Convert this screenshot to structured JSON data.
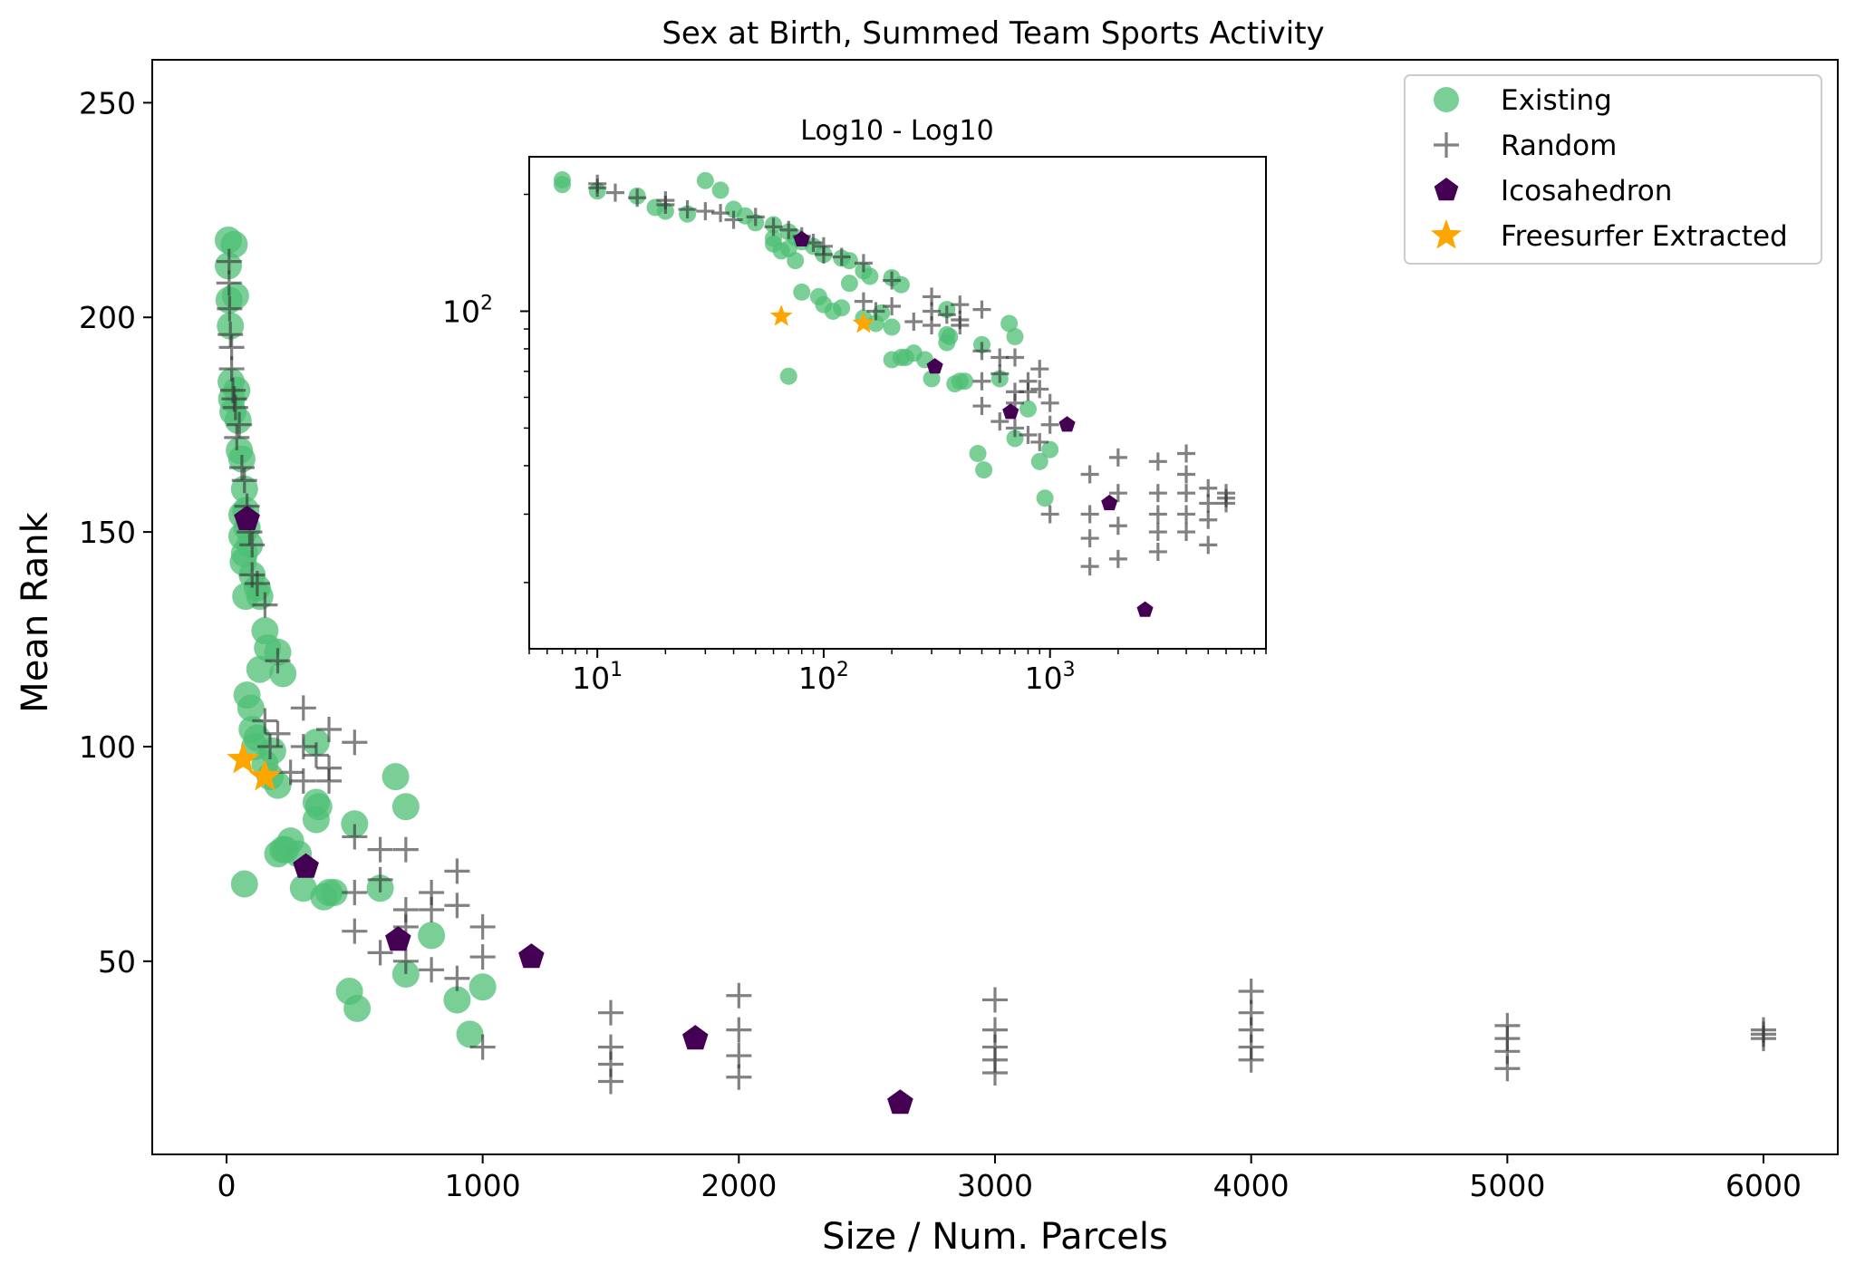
{
  "chart_data": [
    {
      "type": "scatter",
      "title": "Sex at Birth, Summed Team Sports Activity",
      "xlabel": "Size / Num. Parcels",
      "ylabel": "Mean Rank",
      "xlim": [
        -290,
        6290
      ],
      "ylim": [
        5,
        260
      ],
      "xticks": [
        0,
        1000,
        2000,
        3000,
        4000,
        5000,
        6000
      ],
      "xtick_labels": [
        "0",
        "1000",
        "2000",
        "3000",
        "4000",
        "5000",
        "6000"
      ],
      "yticks": [
        50,
        100,
        150,
        200,
        250
      ],
      "ytick_labels": [
        "50",
        "100",
        "150",
        "200",
        "250"
      ],
      "grid": false,
      "legend": {
        "position": "top-right",
        "entries": [
          {
            "label": "Existing",
            "marker": "circle",
            "color": "#4dbf74"
          },
          {
            "label": "Random",
            "marker": "plus",
            "color": "#333333"
          },
          {
            "label": "Icosahedron",
            "marker": "pentagon",
            "color": "#440154"
          },
          {
            "label": "Freesurfer Extracted",
            "marker": "star",
            "color": "#ffa500"
          }
        ]
      },
      "series": [
        {
          "name": "Existing",
          "color": "#4dbf74",
          "marker": "circle",
          "points": [
            [
              7,
              218
            ],
            [
              7,
              212
            ],
            [
              10,
              204
            ],
            [
              15,
              198
            ],
            [
              18,
              185
            ],
            [
              20,
              181
            ],
            [
              25,
              178
            ],
            [
              30,
              217
            ],
            [
              35,
              205
            ],
            [
              40,
              183
            ],
            [
              45,
              176
            ],
            [
              50,
              169
            ],
            [
              60,
              167
            ],
            [
              70,
              160
            ],
            [
              75,
              155
            ],
            [
              80,
              151
            ],
            [
              90,
              147
            ],
            [
              100,
              140
            ],
            [
              120,
              137
            ],
            [
              130,
              135
            ],
            [
              150,
              127
            ],
            [
              160,
              123
            ],
            [
              200,
              122
            ],
            [
              220,
              117
            ],
            [
              60,
              154
            ],
            [
              60,
              149
            ],
            [
              65,
              143
            ],
            [
              70,
              145
            ],
            [
              75,
              135
            ],
            [
              80,
              112
            ],
            [
              95,
              109
            ],
            [
              100,
              104
            ],
            [
              110,
              100
            ],
            [
              120,
              102
            ],
            [
              130,
              118
            ],
            [
              150,
              96
            ],
            [
              170,
              93
            ],
            [
              180,
              99
            ],
            [
              200,
              91
            ],
            [
              200,
              75
            ],
            [
              220,
              76
            ],
            [
              230,
              76
            ],
            [
              250,
              78
            ],
            [
              280,
              75
            ],
            [
              300,
              67
            ],
            [
              350,
              83
            ],
            [
              350,
              101
            ],
            [
              350,
              87
            ],
            [
              360,
              86
            ],
            [
              380,
              65
            ],
            [
              400,
              66
            ],
            [
              420,
              66
            ],
            [
              500,
              82
            ],
            [
              600,
              67
            ],
            [
              660,
              93
            ],
            [
              700,
              86
            ],
            [
              700,
              47
            ],
            [
              800,
              56
            ],
            [
              480,
              43
            ],
            [
              510,
              39
            ],
            [
              900,
              41
            ],
            [
              950,
              33
            ],
            [
              1000,
              44
            ],
            [
              70,
              68
            ]
          ]
        },
        {
          "name": "Random",
          "color": "#333333",
          "marker": "plus",
          "points": [
            [
              10,
              213
            ],
            [
              10,
              208
            ],
            [
              12,
              202
            ],
            [
              15,
              196
            ],
            [
              20,
              193
            ],
            [
              20,
              188
            ],
            [
              25,
              183
            ],
            [
              30,
              181
            ],
            [
              35,
              179
            ],
            [
              40,
              172
            ],
            [
              50,
              175
            ],
            [
              60,
              165
            ],
            [
              70,
              162
            ],
            [
              80,
              156
            ],
            [
              90,
              150
            ],
            [
              100,
              147
            ],
            [
              100,
              140
            ],
            [
              120,
              138
            ],
            [
              150,
              133
            ],
            [
              200,
              120
            ],
            [
              150,
              106
            ],
            [
              170,
              100
            ],
            [
              200,
              103
            ],
            [
              250,
              94
            ],
            [
              300,
              109
            ],
            [
              300,
              100
            ],
            [
              300,
              92
            ],
            [
              350,
              98
            ],
            [
              400,
              95
            ],
            [
              400,
              92
            ],
            [
              400,
              104
            ],
            [
              500,
              101
            ],
            [
              500,
              79
            ],
            [
              500,
              66
            ],
            [
              500,
              57
            ],
            [
              600,
              76
            ],
            [
              600,
              69
            ],
            [
              600,
              52
            ],
            [
              700,
              76
            ],
            [
              700,
              62
            ],
            [
              700,
              58
            ],
            [
              700,
              50
            ],
            [
              800,
              66
            ],
            [
              800,
              62
            ],
            [
              800,
              48
            ],
            [
              900,
              71
            ],
            [
              900,
              63
            ],
            [
              900,
              46
            ],
            [
              1000,
              58
            ],
            [
              1000,
              51
            ],
            [
              1000,
              30
            ],
            [
              1500,
              38
            ],
            [
              1500,
              30
            ],
            [
              1500,
              26
            ],
            [
              1500,
              22
            ],
            [
              2000,
              42
            ],
            [
              2000,
              34
            ],
            [
              2000,
              28
            ],
            [
              2000,
              23
            ],
            [
              3000,
              41
            ],
            [
              3000,
              34
            ],
            [
              3000,
              30
            ],
            [
              3000,
              27
            ],
            [
              3000,
              24
            ],
            [
              4000,
              43
            ],
            [
              4000,
              38
            ],
            [
              4000,
              34
            ],
            [
              4000,
              30
            ],
            [
              4000,
              27
            ],
            [
              5000,
              35
            ],
            [
              5000,
              32
            ],
            [
              5000,
              29
            ],
            [
              5000,
              25
            ],
            [
              6000,
              34
            ],
            [
              6000,
              33
            ],
            [
              6000,
              32
            ]
          ]
        },
        {
          "name": "Icosahedron",
          "color": "#440154",
          "marker": "pentagon",
          "points": [
            [
              80,
              153
            ],
            [
              310,
              72
            ],
            [
              670,
              55
            ],
            [
              1190,
              51
            ],
            [
              1830,
              32
            ],
            [
              2630,
              17
            ]
          ]
        },
        {
          "name": "Freesurfer Extracted",
          "color": "#ffa500",
          "marker": "star",
          "points": [
            [
              65,
              97
            ],
            [
              150,
              93
            ]
          ]
        }
      ]
    },
    {
      "type": "scatter",
      "title": "Log10 - Log10",
      "xscale": "log",
      "yscale": "log",
      "xlim": [
        5,
        9000
      ],
      "ylim": [
        13.5,
        250
      ],
      "xticks": [
        10,
        100,
        1000
      ],
      "xtick_labels": [
        "10",
        "100",
        "1000"
      ],
      "yticks": [
        100
      ],
      "ytick_labels": [
        "100"
      ],
      "grid": false,
      "note_x_tick_format": "exponent"
    }
  ]
}
